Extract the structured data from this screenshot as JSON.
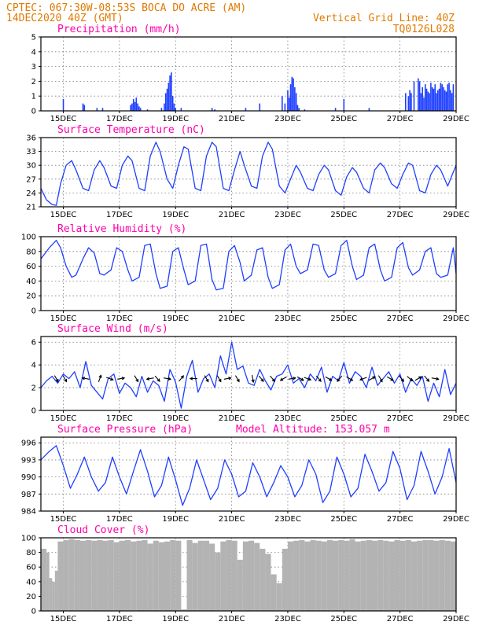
{
  "header": {
    "line1": "CPTEC:   067:30W-08:53S   BOCA DO ACRE (AM)",
    "line2_left": "14DEC2020 40Z (GMT)",
    "line2_right": "Vertical Grid Line: 40Z",
    "line3_right": "TQ0126L028"
  },
  "colors": {
    "header": "#e07a00",
    "title": "#ff00aa",
    "line": "#1f3fff",
    "bar": "#1f3fff",
    "arrow": "#000000",
    "cloud": "#b3b3b3",
    "grid": "#7d7d7d"
  },
  "chart_data": [
    {
      "type": "bar",
      "title": "Precipitation (mm/h)",
      "x_ticks": [
        "15DEC",
        "17DEC",
        "19DEC",
        "21DEC",
        "23DEC",
        "25DEC",
        "27DEC",
        "29DEC"
      ],
      "x_range_days": [
        14.2,
        29.0
      ],
      "ylim": [
        0,
        5
      ],
      "y_ticks": [
        0,
        1,
        2,
        3,
        4,
        5
      ],
      "x_day": [
        15.0,
        15.7,
        15.75,
        16.2,
        16.4,
        17.4,
        17.45,
        17.5,
        17.55,
        17.6,
        17.65,
        17.7,
        17.75,
        18.0,
        18.5,
        18.6,
        18.65,
        18.7,
        18.75,
        18.8,
        18.85,
        18.9,
        18.95,
        19.0,
        19.2,
        20.3,
        20.4,
        21.5,
        22.0,
        22.8,
        22.9,
        23.0,
        23.05,
        23.1,
        23.15,
        23.2,
        23.25,
        23.3,
        23.35,
        23.4,
        23.6,
        24.7,
        25.0,
        25.9,
        27.2,
        27.3,
        27.35,
        27.4,
        27.5,
        27.65,
        27.7,
        27.75,
        27.8,
        27.85,
        27.9,
        27.95,
        28.0,
        28.05,
        28.1,
        28.15,
        28.2,
        28.25,
        28.3,
        28.35,
        28.4,
        28.45,
        28.5,
        28.55,
        28.6,
        28.65,
        28.7,
        28.75,
        28.8,
        28.85,
        28.9
      ],
      "values": [
        0.8,
        0.5,
        0.4,
        0.2,
        0.2,
        0.4,
        0.5,
        0.8,
        0.6,
        0.9,
        0.5,
        0.3,
        0.2,
        0.1,
        0.2,
        0.5,
        1.2,
        1.5,
        1.9,
        2.4,
        2.6,
        1.0,
        0.5,
        0.2,
        0.2,
        0.2,
        0.1,
        0.2,
        0.5,
        1.0,
        0.5,
        1.4,
        0.9,
        1.8,
        2.3,
        2.2,
        1.6,
        1.2,
        0.4,
        0.2,
        0.1,
        0.2,
        0.8,
        0.2,
        1.2,
        1.0,
        1.4,
        1.2,
        2.0,
        2.2,
        2.0,
        1.2,
        1.6,
        0.9,
        1.8,
        1.5,
        1.3,
        1.2,
        1.9,
        1.6,
        1.5,
        1.8,
        1.2,
        1.4,
        1.5,
        1.9,
        1.8,
        1.6,
        1.4,
        1.3,
        1.8,
        1.9,
        1.4,
        1.2,
        1.8
      ]
    },
    {
      "type": "line",
      "title": "Surface Temperature (nC)",
      "x_ticks": [
        "15DEC",
        "17DEC",
        "19DEC",
        "21DEC",
        "23DEC",
        "25DEC",
        "27DEC",
        "29DEC"
      ],
      "x_range_days": [
        14.2,
        29.0
      ],
      "ylim": [
        21,
        36
      ],
      "y_ticks": [
        21,
        24,
        27,
        30,
        33,
        36
      ],
      "x_day": [
        14.2,
        14.4,
        14.6,
        14.75,
        14.9,
        15.1,
        15.3,
        15.45,
        15.7,
        15.9,
        16.1,
        16.3,
        16.45,
        16.7,
        16.9,
        17.1,
        17.3,
        17.45,
        17.7,
        17.9,
        18.1,
        18.3,
        18.45,
        18.7,
        18.9,
        19.1,
        19.3,
        19.45,
        19.7,
        19.9,
        20.1,
        20.3,
        20.45,
        20.7,
        20.9,
        21.1,
        21.3,
        21.45,
        21.7,
        21.9,
        22.1,
        22.3,
        22.45,
        22.7,
        22.9,
        23.1,
        23.3,
        23.45,
        23.7,
        23.9,
        24.1,
        24.3,
        24.45,
        24.7,
        24.9,
        25.1,
        25.3,
        25.45,
        25.7,
        25.9,
        26.1,
        26.3,
        26.45,
        26.7,
        26.9,
        27.1,
        27.3,
        27.45,
        27.7,
        27.9,
        28.1,
        28.3,
        28.45,
        28.7,
        28.9,
        29.0
      ],
      "values": [
        25.0,
        22.5,
        21.5,
        21.3,
        26.0,
        30.0,
        31.0,
        29.0,
        25.0,
        24.5,
        29.0,
        31.0,
        29.5,
        25.5,
        25.0,
        30.0,
        32.0,
        31.0,
        25.0,
        24.5,
        32.0,
        35.0,
        33.0,
        27.0,
        25.0,
        30.0,
        34.0,
        33.5,
        25.0,
        24.5,
        32.0,
        35.0,
        34.0,
        25.0,
        24.5,
        29.0,
        33.0,
        30.0,
        25.5,
        25.0,
        32.0,
        35.0,
        33.5,
        25.5,
        24.0,
        27.0,
        30.0,
        28.5,
        25.0,
        24.5,
        28.0,
        30.0,
        29.0,
        24.5,
        23.5,
        27.5,
        29.5,
        28.5,
        25.0,
        24.0,
        29.0,
        30.5,
        29.5,
        26.0,
        25.0,
        28.0,
        30.5,
        30.0,
        24.5,
        24.0,
        28.0,
        30.0,
        29.0,
        25.5,
        28.5,
        30.0
      ]
    },
    {
      "type": "line",
      "title": "Relative Humidity (%)",
      "x_ticks": [
        "15DEC",
        "17DEC",
        "19DEC",
        "21DEC",
        "23DEC",
        "25DEC",
        "27DEC",
        "29DEC"
      ],
      "x_range_days": [
        14.2,
        29.0
      ],
      "ylim": [
        0,
        100
      ],
      "y_ticks": [
        0,
        20,
        40,
        60,
        80,
        100
      ],
      "x_day": [
        14.2,
        14.5,
        14.75,
        14.9,
        15.1,
        15.3,
        15.45,
        15.7,
        15.9,
        16.1,
        16.3,
        16.45,
        16.7,
        16.9,
        17.1,
        17.3,
        17.45,
        17.7,
        17.9,
        18.1,
        18.3,
        18.45,
        18.7,
        18.9,
        19.1,
        19.3,
        19.45,
        19.7,
        19.9,
        20.1,
        20.3,
        20.45,
        20.7,
        20.9,
        21.1,
        21.3,
        21.45,
        21.7,
        21.9,
        22.1,
        22.3,
        22.45,
        22.7,
        22.9,
        23.1,
        23.3,
        23.45,
        23.7,
        23.9,
        24.1,
        24.3,
        24.45,
        24.7,
        24.9,
        25.1,
        25.3,
        25.45,
        25.7,
        25.9,
        26.1,
        26.3,
        26.45,
        26.7,
        26.9,
        27.1,
        27.3,
        27.45,
        27.7,
        27.9,
        28.1,
        28.3,
        28.45,
        28.7,
        28.9,
        29.0
      ],
      "values": [
        70,
        85,
        95,
        85,
        60,
        45,
        48,
        70,
        85,
        78,
        50,
        48,
        55,
        85,
        80,
        55,
        40,
        45,
        88,
        90,
        50,
        30,
        33,
        80,
        85,
        55,
        35,
        40,
        88,
        90,
        42,
        28,
        30,
        80,
        88,
        65,
        40,
        48,
        82,
        85,
        45,
        30,
        35,
        82,
        90,
        60,
        50,
        55,
        90,
        88,
        55,
        45,
        50,
        88,
        95,
        60,
        42,
        48,
        85,
        90,
        55,
        40,
        45,
        85,
        92,
        58,
        48,
        55,
        80,
        85,
        50,
        45,
        48,
        85,
        50
      ]
    },
    {
      "type": "line",
      "title": "Surface Wind (m/s)",
      "x_ticks": [
        "15DEC",
        "17DEC",
        "19DEC",
        "21DEC",
        "23DEC",
        "25DEC",
        "27DEC",
        "29DEC"
      ],
      "x_range_days": [
        14.2,
        29.0
      ],
      "ylim": [
        0,
        6.5
      ],
      "y_ticks": [
        0,
        2,
        4,
        6
      ],
      "x_day": [
        14.2,
        14.4,
        14.6,
        14.8,
        15.0,
        15.2,
        15.4,
        15.6,
        15.8,
        16.0,
        16.2,
        16.4,
        16.6,
        16.8,
        17.0,
        17.2,
        17.4,
        17.6,
        17.8,
        18.0,
        18.2,
        18.4,
        18.6,
        18.8,
        19.0,
        19.2,
        19.4,
        19.6,
        19.8,
        20.0,
        20.2,
        20.4,
        20.6,
        20.8,
        21.0,
        21.2,
        21.4,
        21.6,
        21.8,
        22.0,
        22.2,
        22.4,
        22.6,
        22.8,
        23.0,
        23.2,
        23.4,
        23.6,
        23.8,
        24.0,
        24.2,
        24.4,
        24.6,
        24.8,
        25.0,
        25.2,
        25.4,
        25.6,
        25.8,
        26.0,
        26.2,
        26.4,
        26.6,
        26.8,
        27.0,
        27.2,
        27.4,
        27.6,
        27.8,
        28.0,
        28.2,
        28.4,
        28.6,
        28.8,
        29.0
      ],
      "values": [
        2.0,
        2.6,
        3.0,
        2.4,
        3.2,
        2.8,
        3.4,
        2.0,
        4.3,
        2.2,
        1.6,
        1.0,
        2.8,
        3.2,
        1.5,
        2.4,
        2.0,
        1.2,
        3.0,
        1.6,
        2.6,
        2.2,
        0.8,
        3.6,
        2.5,
        0.2,
        3.0,
        4.4,
        1.6,
        2.8,
        3.2,
        2.0,
        4.8,
        3.2,
        6.0,
        3.6,
        3.9,
        2.4,
        2.2,
        3.6,
        2.6,
        1.8,
        3.0,
        3.2,
        4.0,
        2.4,
        2.8,
        2.0,
        3.2,
        2.6,
        3.8,
        1.6,
        3.0,
        2.6,
        4.2,
        2.4,
        3.4,
        3.0,
        2.0,
        3.8,
        2.2,
        2.8,
        3.4,
        2.4,
        3.2,
        1.6,
        2.8,
        2.2,
        3.0,
        0.8,
        2.4,
        1.2,
        3.6,
        1.4,
        2.4
      ]
    },
    {
      "type": "line",
      "title": "Surface Pressure (hPa)",
      "annotation": "Model Altitude: 153.057 m",
      "x_ticks": [
        "15DEC",
        "17DEC",
        "19DEC",
        "21DEC",
        "23DEC",
        "25DEC",
        "27DEC",
        "29DEC"
      ],
      "x_range_days": [
        14.2,
        29.0
      ],
      "ylim": [
        984,
        997
      ],
      "y_ticks": [
        984,
        987,
        990,
        993,
        996
      ],
      "x_day": [
        14.2,
        14.5,
        14.75,
        15.0,
        15.25,
        15.5,
        15.75,
        16.0,
        16.25,
        16.5,
        16.75,
        17.0,
        17.25,
        17.5,
        17.75,
        18.0,
        18.25,
        18.5,
        18.75,
        19.0,
        19.25,
        19.5,
        19.75,
        20.0,
        20.25,
        20.5,
        20.75,
        21.0,
        21.25,
        21.5,
        21.75,
        22.0,
        22.25,
        22.5,
        22.75,
        23.0,
        23.25,
        23.5,
        23.75,
        24.0,
        24.25,
        24.5,
        24.75,
        25.0,
        25.25,
        25.5,
        25.75,
        26.0,
        26.25,
        26.5,
        26.75,
        27.0,
        27.25,
        27.5,
        27.75,
        28.0,
        28.25,
        28.5,
        28.75,
        29.0
      ],
      "values": [
        993.0,
        994.5,
        995.5,
        992.0,
        988.0,
        990.5,
        993.5,
        990.0,
        987.5,
        989.0,
        993.5,
        990.0,
        987.0,
        991.0,
        994.8,
        991.0,
        986.5,
        988.5,
        993.5,
        989.5,
        985.0,
        988.0,
        993.0,
        989.5,
        986.0,
        988.0,
        993.0,
        990.5,
        986.5,
        987.5,
        992.5,
        990.0,
        986.5,
        989.0,
        992.0,
        990.0,
        986.5,
        988.5,
        993.0,
        990.5,
        985.5,
        987.5,
        993.5,
        990.5,
        986.5,
        988.0,
        994.0,
        991.0,
        987.5,
        989.0,
        994.5,
        991.5,
        986.0,
        988.5,
        994.5,
        991.0,
        987.0,
        990.0,
        995.0,
        989.0
      ]
    },
    {
      "type": "bar",
      "title": "Cloud Cover (%)",
      "x_ticks": [
        "15DEC",
        "17DEC",
        "19DEC",
        "21DEC",
        "23DEC",
        "25DEC",
        "27DEC",
        "29DEC"
      ],
      "x_range_days": [
        14.2,
        29.0
      ],
      "ylim": [
        0,
        100
      ],
      "y_ticks": [
        0,
        20,
        40,
        60,
        80,
        100
      ],
      "x_day": [
        14.2,
        14.4,
        14.5,
        14.6,
        14.7,
        14.8,
        15.0,
        15.2,
        15.4,
        15.6,
        15.8,
        16.0,
        16.2,
        16.4,
        16.6,
        16.8,
        17.0,
        17.2,
        17.4,
        17.6,
        17.8,
        18.0,
        18.2,
        18.4,
        18.6,
        18.8,
        19.0,
        19.2,
        19.4,
        19.6,
        19.8,
        20.0,
        20.2,
        20.4,
        20.6,
        20.8,
        21.0,
        21.2,
        21.4,
        21.6,
        21.8,
        22.0,
        22.2,
        22.4,
        22.6,
        22.8,
        23.0,
        23.2,
        23.4,
        23.6,
        23.8,
        24.0,
        24.2,
        24.4,
        24.6,
        24.8,
        25.0,
        25.2,
        25.4,
        25.6,
        25.8,
        26.0,
        26.2,
        26.4,
        26.6,
        26.8,
        27.0,
        27.2,
        27.4,
        27.6,
        27.8,
        28.0,
        28.2,
        28.4,
        28.6,
        28.8,
        29.0
      ],
      "values": [
        85,
        80,
        45,
        40,
        55,
        95,
        97,
        98,
        97,
        96,
        97,
        96,
        97,
        96,
        97,
        94,
        96,
        97,
        95,
        96,
        97,
        92,
        96,
        94,
        95,
        97,
        96,
        2,
        97,
        93,
        96,
        96,
        92,
        80,
        95,
        97,
        96,
        70,
        95,
        96,
        93,
        85,
        78,
        50,
        38,
        85,
        95,
        96,
        97,
        95,
        97,
        96,
        95,
        97,
        96,
        97,
        96,
        98,
        95,
        96,
        97,
        96,
        97,
        96,
        95,
        97,
        96,
        97,
        95,
        96,
        97,
        97,
        96,
        97,
        96,
        95,
        90
      ]
    }
  ],
  "wind_arrows_deg_from": [
    330,
    330,
    100,
    200,
    290,
    260,
    330,
    80,
    320,
    280,
    220,
    90,
    330,
    330,
    260,
    330,
    350,
    320,
    320,
    60,
    260,
    300,
    290,
    320,
    300,
    40,
    300,
    70,
    240,
    330,
    300,
    320,
    310,
    240,
    320,
    280
  ],
  "wind_arrows_x_day": [
    14.75,
    15.05,
    15.8,
    16.3,
    16.65,
    17.05,
    17.6,
    18.1,
    18.35,
    18.7,
    19.2,
    19.65,
    20.1,
    20.55,
    20.85,
    21.2,
    21.75,
    22.05,
    22.45,
    22.85,
    23.15,
    23.45,
    23.7,
    24.1,
    24.45,
    24.85,
    25.2,
    25.7,
    26.0,
    26.3,
    26.65,
    27.05,
    27.35,
    27.65,
    27.95,
    28.25
  ]
}
